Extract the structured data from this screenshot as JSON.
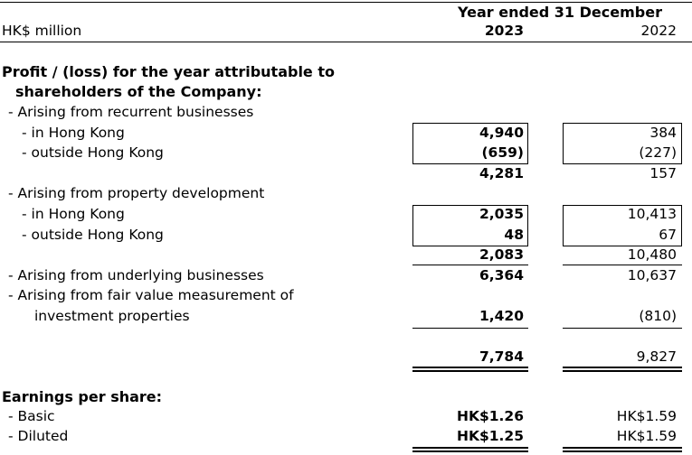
{
  "header": {
    "units": "HK$ million",
    "period": "Year ended 31 December",
    "year_current": "2023",
    "year_prior": "2022"
  },
  "section1": {
    "title_line1": "Profit / (loss) for the year attributable to",
    "title_line2": "shareholders of the Company:",
    "recurrent": {
      "label": "-  Arising from recurrent businesses",
      "hk": {
        "label": "- in Hong Kong",
        "v2023": "4,940",
        "v2022": "384"
      },
      "outside": {
        "label": "- outside Hong Kong",
        "v2023": "(659)",
        "v2022": "(227)"
      },
      "subtotal": {
        "v2023": "4,281",
        "v2022": "157"
      }
    },
    "property": {
      "label": "-  Arising from property development",
      "hk": {
        "label": "- in Hong Kong",
        "v2023": "2,035",
        "v2022": "10,413"
      },
      "outside": {
        "label": "- outside Hong Kong",
        "v2023": "48",
        "v2022": "67"
      },
      "subtotal": {
        "v2023": "2,083",
        "v2022": "10,480"
      }
    },
    "underlying": {
      "label": "-  Arising from underlying businesses",
      "v2023": "6,364",
      "v2022": "10,637"
    },
    "fair_value": {
      "label_line1": "-  Arising from fair value measurement of",
      "label_line2": "investment properties",
      "v2023": "1,420",
      "v2022": "(810)"
    },
    "total": {
      "v2023": "7,784",
      "v2022": "9,827"
    }
  },
  "eps": {
    "title": "Earnings per share:",
    "basic": {
      "label": "-  Basic",
      "v2023": "HK$1.26",
      "v2022": "HK$1.59"
    },
    "diluted": {
      "label": "-  Diluted",
      "v2023": "HK$1.25",
      "v2022": "HK$1.59"
    }
  }
}
